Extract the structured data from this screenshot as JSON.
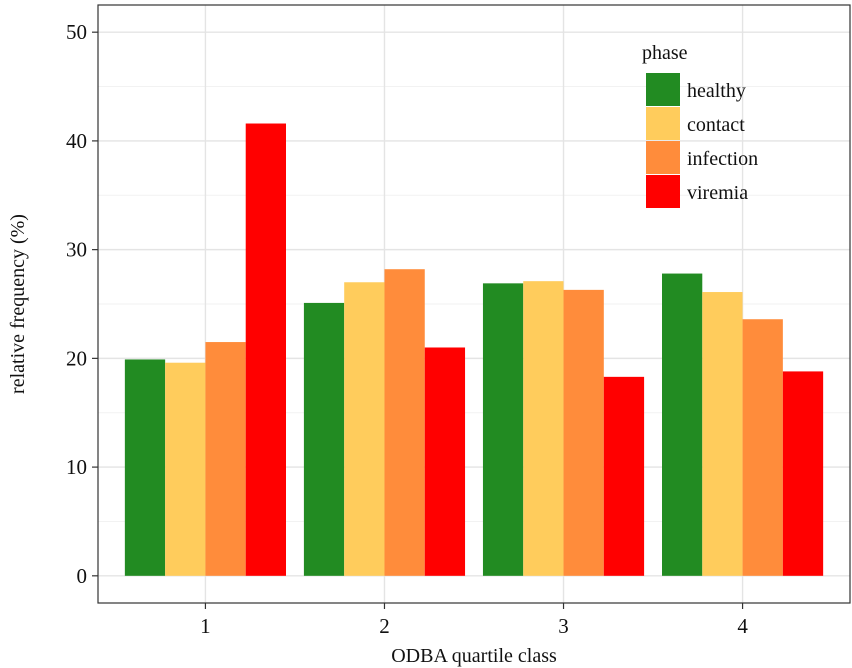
{
  "chart_data": {
    "type": "bar",
    "xlabel": "ODBA quartile class",
    "ylabel": "relative frequency (%)",
    "categories": [
      "1",
      "2",
      "3",
      "4"
    ],
    "ylim": [
      -2.5,
      52.5
    ],
    "yticks": [
      0,
      10,
      20,
      30,
      40,
      50
    ],
    "grid": true,
    "legend": {
      "title": "phase",
      "position": "top-right"
    },
    "series": [
      {
        "name": "healthy",
        "color": "#228B22",
        "values": [
          19.9,
          25.1,
          26.9,
          27.8
        ]
      },
      {
        "name": "contact",
        "color": "#FFCC5C",
        "values": [
          19.6,
          27.0,
          27.1,
          26.1
        ]
      },
      {
        "name": "infection",
        "color": "#FF8C3B",
        "values": [
          21.5,
          28.2,
          26.3,
          23.6
        ]
      },
      {
        "name": "viremia",
        "color": "#FF0000",
        "values": [
          41.6,
          21.0,
          18.3,
          18.8
        ]
      }
    ]
  }
}
